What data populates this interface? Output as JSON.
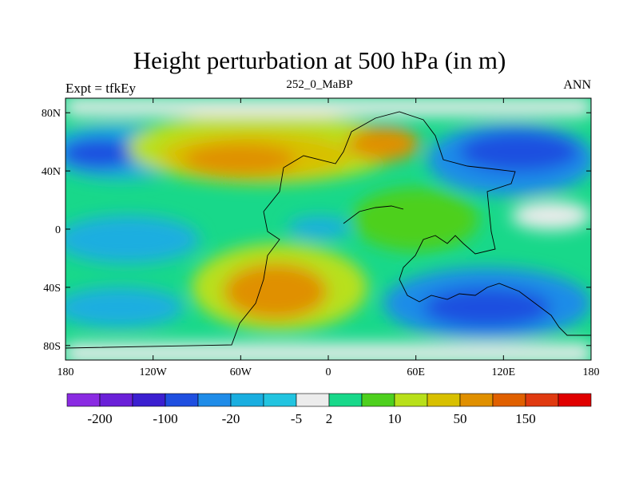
{
  "header": {
    "title": "Height perturbation at 500 hPa (in m)",
    "left_label": "Expt = tfkEy",
    "center_label": "252_0_MaBP",
    "right_label": "ANN"
  },
  "chart_data": {
    "type": "heatmap",
    "title": "Height perturbation at 500 hPa (in m)",
    "xlabel": "",
    "ylabel": "",
    "xlim": [
      -180,
      180
    ],
    "ylim": [
      -90,
      90
    ],
    "x_ticks": [
      {
        "value": -180,
        "label": "180"
      },
      {
        "value": -120,
        "label": "120W"
      },
      {
        "value": -60,
        "label": "60W"
      },
      {
        "value": 0,
        "label": "0"
      },
      {
        "value": 60,
        "label": "60E"
      },
      {
        "value": 120,
        "label": "120E"
      },
      {
        "value": 180,
        "label": "180"
      }
    ],
    "y_ticks": [
      {
        "value": 80,
        "label": "80N"
      },
      {
        "value": 40,
        "label": "40N"
      },
      {
        "value": 0,
        "label": "0"
      },
      {
        "value": -40,
        "label": "40S"
      },
      {
        "value": -80,
        "label": "80S"
      }
    ],
    "colorbar": {
      "colors": [
        "#8a2be2",
        "#6a20d8",
        "#3b1fd0",
        "#1f4fe0",
        "#1f8ce8",
        "#1aaee0",
        "#22c4e0",
        "#ececec",
        "#18d88a",
        "#4ed01e",
        "#b8e01a",
        "#d8c000",
        "#e09000",
        "#e06000",
        "#e03a10",
        "#e00000"
      ],
      "tick_labels": [
        "-200",
        "-100",
        "-20",
        "-5",
        "2",
        "10",
        "50",
        "150"
      ],
      "tick_boundaries": [
        1,
        3,
        5,
        7,
        8,
        10,
        12,
        14
      ]
    },
    "regions": [
      {
        "lon": -160,
        "lat": 50,
        "level": 3
      },
      {
        "lon": -100,
        "lat": 40,
        "level": 11
      },
      {
        "lon": -30,
        "lat": 40,
        "level": 12
      },
      {
        "lon": 20,
        "lat": 50,
        "level": 12
      },
      {
        "lon": 100,
        "lat": 50,
        "level": 3
      },
      {
        "lon": 60,
        "lat": 10,
        "level": 9
      },
      {
        "lon": -40,
        "lat": -40,
        "level": 11
      },
      {
        "lon": 90,
        "lat": -50,
        "level": 3
      },
      {
        "lon": -150,
        "lat": -30,
        "level": 5
      }
    ],
    "grid": false,
    "legend": "colorbar-bottom"
  }
}
